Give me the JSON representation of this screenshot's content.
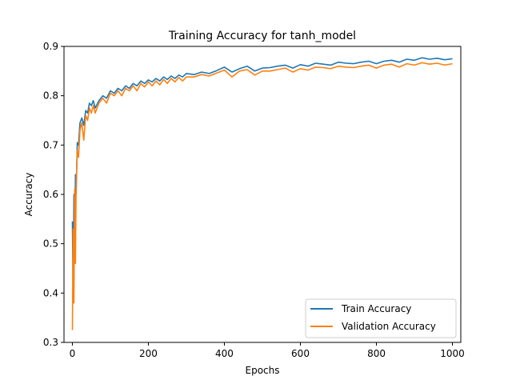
{
  "chart_data": {
    "type": "line",
    "title": "Training Accuracy for tanh_model",
    "xlabel": "Epochs",
    "ylabel": "Accuracy",
    "xlim": [
      -22,
      1022
    ],
    "ylim": [
      0.3,
      0.9
    ],
    "xticks": [
      0,
      200,
      400,
      600,
      800,
      1000
    ],
    "yticks": [
      0.3,
      0.4,
      0.5,
      0.6,
      0.7,
      0.8,
      0.9
    ],
    "xtick_labels": [
      "0",
      "200",
      "400",
      "600",
      "800",
      "1000"
    ],
    "ytick_labels": [
      "0.3",
      "0.4",
      "0.5",
      "0.6",
      "0.7",
      "0.8",
      "0.9"
    ],
    "grid": false,
    "legend_position": "bottom-right",
    "series": [
      {
        "name": "Train Accuracy",
        "color": "#1f77b4",
        "x": [
          0,
          2,
          4,
          6,
          8,
          10,
          13,
          16,
          20,
          25,
          30,
          35,
          40,
          45,
          50,
          55,
          60,
          70,
          80,
          90,
          100,
          110,
          120,
          130,
          140,
          150,
          160,
          170,
          180,
          190,
          200,
          210,
          220,
          230,
          240,
          250,
          260,
          270,
          280,
          290,
          300,
          320,
          340,
          360,
          380,
          400,
          420,
          440,
          460,
          480,
          500,
          520,
          540,
          560,
          580,
          600,
          620,
          640,
          660,
          680,
          700,
          720,
          740,
          760,
          780,
          800,
          820,
          840,
          860,
          880,
          900,
          920,
          940,
          960,
          980,
          1000
        ],
        "y": [
          0.545,
          0.39,
          0.6,
          0.5,
          0.64,
          0.6,
          0.705,
          0.7,
          0.745,
          0.755,
          0.74,
          0.77,
          0.765,
          0.785,
          0.78,
          0.79,
          0.775,
          0.79,
          0.8,
          0.795,
          0.81,
          0.805,
          0.815,
          0.81,
          0.82,
          0.815,
          0.825,
          0.82,
          0.83,
          0.825,
          0.832,
          0.828,
          0.835,
          0.83,
          0.838,
          0.833,
          0.84,
          0.835,
          0.842,
          0.838,
          0.845,
          0.843,
          0.848,
          0.845,
          0.851,
          0.858,
          0.848,
          0.855,
          0.86,
          0.85,
          0.856,
          0.857,
          0.86,
          0.862,
          0.856,
          0.863,
          0.86,
          0.866,
          0.864,
          0.862,
          0.868,
          0.866,
          0.865,
          0.868,
          0.87,
          0.865,
          0.87,
          0.872,
          0.868,
          0.874,
          0.872,
          0.877,
          0.874,
          0.876,
          0.873,
          0.875
        ]
      },
      {
        "name": "Validation Accuracy",
        "color": "#ff7f0e",
        "x": [
          0,
          2,
          4,
          6,
          8,
          10,
          13,
          16,
          20,
          25,
          30,
          35,
          40,
          45,
          50,
          55,
          60,
          70,
          80,
          90,
          100,
          110,
          120,
          130,
          140,
          150,
          160,
          170,
          180,
          190,
          200,
          210,
          220,
          230,
          240,
          250,
          260,
          270,
          280,
          290,
          300,
          320,
          340,
          360,
          380,
          400,
          420,
          440,
          460,
          480,
          500,
          520,
          540,
          560,
          580,
          600,
          620,
          640,
          660,
          680,
          700,
          720,
          740,
          760,
          780,
          800,
          820,
          840,
          860,
          880,
          900,
          920,
          940,
          960,
          980,
          1000
        ],
        "y": [
          0.325,
          0.53,
          0.38,
          0.61,
          0.46,
          0.62,
          0.69,
          0.675,
          0.73,
          0.745,
          0.71,
          0.76,
          0.75,
          0.775,
          0.765,
          0.78,
          0.765,
          0.785,
          0.795,
          0.785,
          0.805,
          0.8,
          0.81,
          0.8,
          0.815,
          0.81,
          0.82,
          0.81,
          0.825,
          0.818,
          0.828,
          0.82,
          0.83,
          0.822,
          0.833,
          0.825,
          0.835,
          0.828,
          0.837,
          0.83,
          0.838,
          0.838,
          0.843,
          0.84,
          0.846,
          0.852,
          0.838,
          0.85,
          0.853,
          0.842,
          0.85,
          0.85,
          0.853,
          0.856,
          0.848,
          0.855,
          0.852,
          0.858,
          0.857,
          0.855,
          0.86,
          0.858,
          0.857,
          0.86,
          0.862,
          0.856,
          0.862,
          0.864,
          0.858,
          0.865,
          0.862,
          0.867,
          0.864,
          0.866,
          0.862,
          0.865
        ]
      }
    ]
  }
}
